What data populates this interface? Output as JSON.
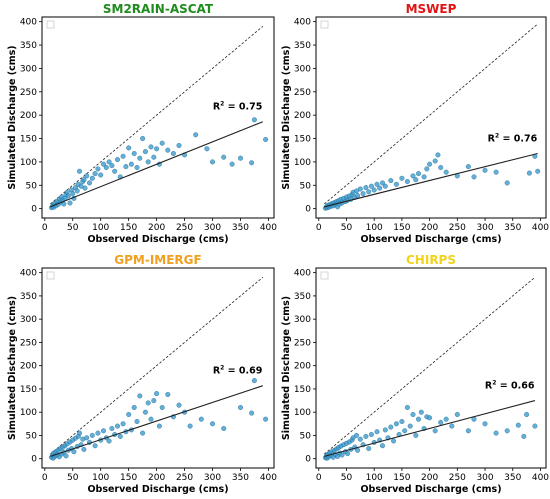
{
  "chart_data": [
    {
      "type": "scatter",
      "title": "SM2RAIN-ASCAT",
      "title_color": "#1e8c1e",
      "xlabel": "Observed Discharge (cms)",
      "ylabel": "Simulated Discharge (cms)",
      "xlim": [
        -5,
        410
      ],
      "ylim": [
        -20,
        410
      ],
      "xticks": [
        0,
        50,
        100,
        150,
        200,
        250,
        300,
        350,
        400
      ],
      "yticks": [
        0,
        50,
        100,
        150,
        200,
        250,
        300,
        350,
        400
      ],
      "r2_prefix": "R",
      "r2_sup": "2",
      "r2_text": " = 0.75",
      "fit_line": [
        [
          10,
          4
        ],
        [
          390,
          186
        ]
      ],
      "one_to_one": [
        [
          10,
          10
        ],
        [
          390,
          390
        ]
      ],
      "points": [
        [
          12,
          2
        ],
        [
          14,
          5
        ],
        [
          15,
          8
        ],
        [
          16,
          3
        ],
        [
          18,
          12
        ],
        [
          20,
          6
        ],
        [
          22,
          15
        ],
        [
          24,
          9
        ],
        [
          26,
          20
        ],
        [
          28,
          14
        ],
        [
          30,
          25
        ],
        [
          32,
          18
        ],
        [
          34,
          10
        ],
        [
          36,
          22
        ],
        [
          38,
          30
        ],
        [
          40,
          35
        ],
        [
          42,
          27
        ],
        [
          45,
          12
        ],
        [
          48,
          40
        ],
        [
          50,
          32
        ],
        [
          52,
          22
        ],
        [
          55,
          45
        ],
        [
          58,
          38
        ],
        [
          60,
          52
        ],
        [
          62,
          80
        ],
        [
          65,
          48
        ],
        [
          68,
          58
        ],
        [
          70,
          62
        ],
        [
          72,
          44
        ],
        [
          75,
          70
        ],
        [
          80,
          55
        ],
        [
          85,
          65
        ],
        [
          90,
          75
        ],
        [
          95,
          85
        ],
        [
          100,
          72
        ],
        [
          105,
          95
        ],
        [
          110,
          88
        ],
        [
          115,
          100
        ],
        [
          120,
          92
        ],
        [
          125,
          80
        ],
        [
          130,
          105
        ],
        [
          135,
          68
        ],
        [
          140,
          112
        ],
        [
          145,
          90
        ],
        [
          150,
          130
        ],
        [
          155,
          95
        ],
        [
          160,
          118
        ],
        [
          165,
          88
        ],
        [
          170,
          108
        ],
        [
          175,
          150
        ],
        [
          180,
          122
        ],
        [
          185,
          100
        ],
        [
          190,
          132
        ],
        [
          195,
          110
        ],
        [
          200,
          128
        ],
        [
          205,
          95
        ],
        [
          210,
          140
        ],
        [
          220,
          125
        ],
        [
          230,
          118
        ],
        [
          240,
          135
        ],
        [
          250,
          115
        ],
        [
          270,
          158
        ],
        [
          290,
          128
        ],
        [
          300,
          100
        ],
        [
          320,
          110
        ],
        [
          335,
          95
        ],
        [
          350,
          108
        ],
        [
          370,
          98
        ],
        [
          375,
          190
        ],
        [
          395,
          148
        ]
      ]
    },
    {
      "type": "scatter",
      "title": "MSWEP",
      "title_color": "#e21313",
      "xlabel": "Observed Discharge (cms)",
      "ylabel": "Simulated Discharge (cms)",
      "xlim": [
        -5,
        410
      ],
      "ylim": [
        -20,
        410
      ],
      "xticks": [
        0,
        50,
        100,
        150,
        200,
        250,
        300,
        350,
        400
      ],
      "yticks": [
        0,
        50,
        100,
        150,
        200,
        250,
        300,
        350,
        400
      ],
      "r2_prefix": "R",
      "r2_sup": "2",
      "r2_text": " = 0.76",
      "fit_line": [
        [
          10,
          4
        ],
        [
          395,
          118
        ]
      ],
      "one_to_one": [
        [
          10,
          10
        ],
        [
          395,
          395
        ]
      ],
      "points": [
        [
          12,
          1
        ],
        [
          14,
          4
        ],
        [
          15,
          2
        ],
        [
          16,
          7
        ],
        [
          18,
          3
        ],
        [
          20,
          9
        ],
        [
          22,
          5
        ],
        [
          24,
          11
        ],
        [
          26,
          6
        ],
        [
          28,
          13
        ],
        [
          30,
          8
        ],
        [
          32,
          15
        ],
        [
          34,
          4
        ],
        [
          36,
          17
        ],
        [
          38,
          10
        ],
        [
          40,
          20
        ],
        [
          42,
          12
        ],
        [
          45,
          22
        ],
        [
          48,
          15
        ],
        [
          50,
          25
        ],
        [
          52,
          18
        ],
        [
          55,
          27
        ],
        [
          58,
          20
        ],
        [
          60,
          30
        ],
        [
          62,
          35
        ],
        [
          65,
          24
        ],
        [
          68,
          38
        ],
        [
          70,
          28
        ],
        [
          75,
          42
        ],
        [
          80,
          32
        ],
        [
          85,
          45
        ],
        [
          90,
          36
        ],
        [
          95,
          48
        ],
        [
          100,
          40
        ],
        [
          105,
          52
        ],
        [
          110,
          44
        ],
        [
          115,
          55
        ],
        [
          120,
          48
        ],
        [
          130,
          60
        ],
        [
          140,
          52
        ],
        [
          150,
          65
        ],
        [
          160,
          58
        ],
        [
          170,
          70
        ],
        [
          175,
          62
        ],
        [
          180,
          75
        ],
        [
          190,
          68
        ],
        [
          195,
          85
        ],
        [
          200,
          95
        ],
        [
          210,
          102
        ],
        [
          215,
          115
        ],
        [
          220,
          88
        ],
        [
          230,
          78
        ],
        [
          250,
          70
        ],
        [
          270,
          90
        ],
        [
          280,
          68
        ],
        [
          300,
          82
        ],
        [
          320,
          78
        ],
        [
          340,
          55
        ],
        [
          380,
          76
        ],
        [
          390,
          112
        ],
        [
          395,
          80
        ]
      ]
    },
    {
      "type": "scatter",
      "title": "GPM-IMERGF",
      "title_color": "#f0a01e",
      "xlabel": "Observed Discharge (cms)",
      "ylabel": "Simulated Discharge (cms)",
      "xlim": [
        -5,
        410
      ],
      "ylim": [
        -20,
        410
      ],
      "xticks": [
        0,
        50,
        100,
        150,
        200,
        250,
        300,
        350,
        400
      ],
      "yticks": [
        0,
        50,
        100,
        150,
        200,
        250,
        300,
        350,
        400
      ],
      "r2_prefix": "R",
      "r2_sup": "2",
      "r2_text": " = 0.69",
      "fit_line": [
        [
          10,
          5
        ],
        [
          390,
          157
        ]
      ],
      "one_to_one": [
        [
          10,
          10
        ],
        [
          390,
          390
        ]
      ],
      "points": [
        [
          12,
          3
        ],
        [
          14,
          8
        ],
        [
          15,
          1
        ],
        [
          16,
          12
        ],
        [
          18,
          5
        ],
        [
          20,
          15
        ],
        [
          22,
          8
        ],
        [
          24,
          18
        ],
        [
          26,
          4
        ],
        [
          28,
          22
        ],
        [
          30,
          10
        ],
        [
          32,
          25
        ],
        [
          34,
          14
        ],
        [
          36,
          28
        ],
        [
          38,
          6
        ],
        [
          40,
          32
        ],
        [
          42,
          18
        ],
        [
          45,
          36
        ],
        [
          48,
          22
        ],
        [
          50,
          40
        ],
        [
          52,
          15
        ],
        [
          55,
          44
        ],
        [
          58,
          26
        ],
        [
          60,
          48
        ],
        [
          62,
          55
        ],
        [
          65,
          30
        ],
        [
          68,
          42
        ],
        [
          70,
          20
        ],
        [
          75,
          45
        ],
        [
          80,
          35
        ],
        [
          85,
          50
        ],
        [
          90,
          28
        ],
        [
          95,
          55
        ],
        [
          100,
          40
        ],
        [
          105,
          60
        ],
        [
          110,
          45
        ],
        [
          115,
          38
        ],
        [
          120,
          65
        ],
        [
          125,
          52
        ],
        [
          130,
          70
        ],
        [
          135,
          48
        ],
        [
          140,
          75
        ],
        [
          145,
          58
        ],
        [
          150,
          95
        ],
        [
          155,
          62
        ],
        [
          160,
          110
        ],
        [
          165,
          80
        ],
        [
          170,
          135
        ],
        [
          175,
          55
        ],
        [
          180,
          100
        ],
        [
          185,
          120
        ],
        [
          190,
          85
        ],
        [
          195,
          125
        ],
        [
          200,
          140
        ],
        [
          205,
          70
        ],
        [
          210,
          110
        ],
        [
          220,
          138
        ],
        [
          230,
          90
        ],
        [
          240,
          115
        ],
        [
          250,
          100
        ],
        [
          260,
          70
        ],
        [
          280,
          85
        ],
        [
          300,
          75
        ],
        [
          320,
          65
        ],
        [
          350,
          110
        ],
        [
          370,
          98
        ],
        [
          375,
          168
        ],
        [
          395,
          85
        ]
      ]
    },
    {
      "type": "scatter",
      "title": "CHIRPS",
      "title_color": "#f2d21a",
      "xlabel": "Observed Discharge (cms)",
      "ylabel": "Simulated Discharge (cms)",
      "xlim": [
        -5,
        410
      ],
      "ylim": [
        -20,
        410
      ],
      "xticks": [
        0,
        50,
        100,
        150,
        200,
        250,
        300,
        350,
        400
      ],
      "yticks": [
        0,
        50,
        100,
        150,
        200,
        250,
        300,
        350,
        400
      ],
      "r2_prefix": "R",
      "r2_sup": "2",
      "r2_text": " = 0.66",
      "fit_line": [
        [
          10,
          5
        ],
        [
          390,
          125
        ]
      ],
      "one_to_one": [
        [
          10,
          10
        ],
        [
          390,
          390
        ]
      ],
      "points": [
        [
          12,
          2
        ],
        [
          14,
          6
        ],
        [
          15,
          1
        ],
        [
          16,
          9
        ],
        [
          18,
          4
        ],
        [
          20,
          12
        ],
        [
          22,
          7
        ],
        [
          24,
          15
        ],
        [
          26,
          3
        ],
        [
          28,
          18
        ],
        [
          30,
          9
        ],
        [
          32,
          21
        ],
        [
          34,
          5
        ],
        [
          36,
          24
        ],
        [
          38,
          12
        ],
        [
          40,
          27
        ],
        [
          42,
          8
        ],
        [
          45,
          30
        ],
        [
          48,
          15
        ],
        [
          50,
          33
        ],
        [
          52,
          11
        ],
        [
          55,
          36
        ],
        [
          58,
          20
        ],
        [
          60,
          40
        ],
        [
          62,
          45
        ],
        [
          65,
          25
        ],
        [
          68,
          50
        ],
        [
          70,
          18
        ],
        [
          75,
          42
        ],
        [
          80,
          30
        ],
        [
          85,
          48
        ],
        [
          90,
          22
        ],
        [
          95,
          52
        ],
        [
          100,
          35
        ],
        [
          105,
          58
        ],
        [
          110,
          40
        ],
        [
          115,
          28
        ],
        [
          120,
          62
        ],
        [
          125,
          45
        ],
        [
          130,
          68
        ],
        [
          135,
          38
        ],
        [
          140,
          75
        ],
        [
          145,
          52
        ],
        [
          150,
          80
        ],
        [
          155,
          60
        ],
        [
          160,
          110
        ],
        [
          165,
          70
        ],
        [
          170,
          95
        ],
        [
          175,
          50
        ],
        [
          180,
          85
        ],
        [
          185,
          100
        ],
        [
          190,
          65
        ],
        [
          195,
          90
        ],
        [
          200,
          88
        ],
        [
          210,
          60
        ],
        [
          220,
          78
        ],
        [
          230,
          85
        ],
        [
          240,
          70
        ],
        [
          250,
          95
        ],
        [
          270,
          60
        ],
        [
          280,
          85
        ],
        [
          300,
          75
        ],
        [
          320,
          55
        ],
        [
          340,
          60
        ],
        [
          360,
          72
        ],
        [
          370,
          48
        ],
        [
          375,
          95
        ],
        [
          390,
          70
        ]
      ]
    }
  ]
}
